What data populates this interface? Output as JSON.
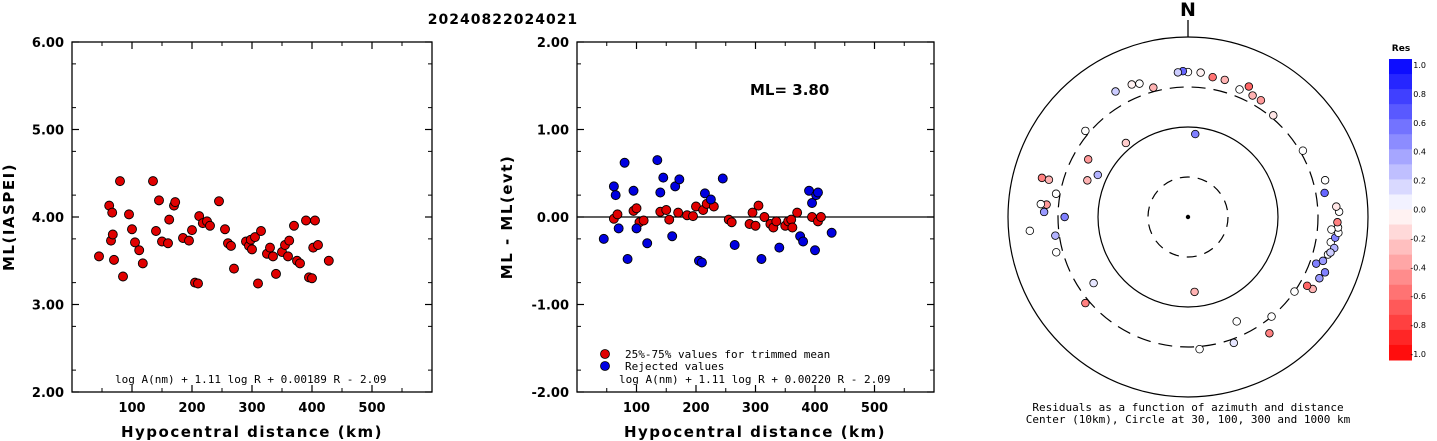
{
  "title": "20240822024021",
  "chart_data": [
    {
      "type": "scatter",
      "xlabel": "Hypocentral distance (km)",
      "ylabel": "ML(IASPEI)",
      "xlim": [
        0,
        600
      ],
      "ylim": [
        2.0,
        6.0
      ],
      "xticks": [
        "100",
        "200",
        "300",
        "400",
        "500"
      ],
      "yticks": [
        "2.00",
        "3.00",
        "4.00",
        "5.00",
        "6.00"
      ],
      "formula": "log A(nm) + 1.11 log R + 0.00189 R - 2.09",
      "color": "#e00000",
      "points": [
        [
          45,
          3.55
        ],
        [
          62,
          4.13
        ],
        [
          65,
          3.73
        ],
        [
          67,
          4.05
        ],
        [
          68,
          3.8
        ],
        [
          70,
          3.51
        ],
        [
          80,
          4.41
        ],
        [
          85,
          3.32
        ],
        [
          95,
          4.03
        ],
        [
          100,
          3.86
        ],
        [
          105,
          3.71
        ],
        [
          112,
          3.62
        ],
        [
          118,
          3.47
        ],
        [
          135,
          4.41
        ],
        [
          140,
          3.84
        ],
        [
          145,
          4.19
        ],
        [
          150,
          3.72
        ],
        [
          160,
          3.7
        ],
        [
          162,
          3.97
        ],
        [
          170,
          4.13
        ],
        [
          172,
          4.17
        ],
        [
          185,
          3.76
        ],
        [
          195,
          3.73
        ],
        [
          200,
          3.85
        ],
        [
          205,
          3.25
        ],
        [
          210,
          3.24
        ],
        [
          212,
          4.01
        ],
        [
          218,
          3.93
        ],
        [
          225,
          3.95
        ],
        [
          230,
          3.9
        ],
        [
          245,
          4.18
        ],
        [
          255,
          3.86
        ],
        [
          260,
          3.7
        ],
        [
          265,
          3.67
        ],
        [
          270,
          3.41
        ],
        [
          290,
          3.72
        ],
        [
          295,
          3.67
        ],
        [
          298,
          3.74
        ],
        [
          300,
          3.63
        ],
        [
          305,
          3.77
        ],
        [
          310,
          3.24
        ],
        [
          315,
          3.84
        ],
        [
          325,
          3.58
        ],
        [
          330,
          3.65
        ],
        [
          335,
          3.55
        ],
        [
          340,
          3.35
        ],
        [
          350,
          3.6
        ],
        [
          355,
          3.68
        ],
        [
          360,
          3.55
        ],
        [
          362,
          3.73
        ],
        [
          370,
          3.9
        ],
        [
          375,
          3.5
        ],
        [
          380,
          3.47
        ],
        [
          390,
          3.96
        ],
        [
          395,
          3.31
        ],
        [
          400,
          3.3
        ],
        [
          402,
          3.65
        ],
        [
          405,
          3.96
        ],
        [
          410,
          3.68
        ],
        [
          428,
          3.5
        ]
      ]
    },
    {
      "type": "scatter",
      "xlabel": "Hypocentral distance (km)",
      "ylabel": "ML - ML(evt)",
      "xlim": [
        0,
        600
      ],
      "ylim": [
        -2.0,
        2.0
      ],
      "xticks": [
        "100",
        "200",
        "300",
        "400",
        "500"
      ],
      "yticks": [
        "-2.00",
        "-1.00",
        "0.00",
        "1.00",
        "2.00"
      ],
      "annotation": "ML= 3.80",
      "formula": "log A(nm) + 1.11 log R + 0.00220 R - 2.09",
      "legend": [
        {
          "label": "25%-75% values for trimmed mean",
          "color": "#e00000"
        },
        {
          "label": "Rejected values",
          "color": "#0000e0"
        }
      ],
      "series": [
        {
          "name": "25%-75% values for trimmed mean",
          "color": "#e00000",
          "points": [
            [
              62,
              -0.02
            ],
            [
              68,
              0.03
            ],
            [
              95,
              0.07
            ],
            [
              100,
              0.1
            ],
            [
              105,
              -0.06
            ],
            [
              112,
              -0.04
            ],
            [
              140,
              0.06
            ],
            [
              150,
              0.08
            ],
            [
              155,
              -0.03
            ],
            [
              170,
              0.05
            ],
            [
              185,
              0.02
            ],
            [
              195,
              0.01
            ],
            [
              200,
              0.12
            ],
            [
              212,
              0.08
            ],
            [
              218,
              0.15
            ],
            [
              230,
              0.12
            ],
            [
              255,
              -0.03
            ],
            [
              260,
              -0.06
            ],
            [
              290,
              -0.08
            ],
            [
              295,
              0.05
            ],
            [
              300,
              -0.1
            ],
            [
              305,
              0.13
            ],
            [
              315,
              0.0
            ],
            [
              325,
              -0.08
            ],
            [
              330,
              -0.12
            ],
            [
              335,
              -0.05
            ],
            [
              350,
              -0.1
            ],
            [
              355,
              -0.05
            ],
            [
              360,
              -0.03
            ],
            [
              362,
              -0.12
            ],
            [
              370,
              0.05
            ],
            [
              395,
              0.0
            ],
            [
              405,
              -0.05
            ],
            [
              410,
              0.0
            ]
          ]
        },
        {
          "name": "Rejected values",
          "color": "#0000e0",
          "points": [
            [
              45,
              -0.25
            ],
            [
              62,
              0.35
            ],
            [
              65,
              0.25
            ],
            [
              70,
              -0.13
            ],
            [
              80,
              0.62
            ],
            [
              85,
              -0.48
            ],
            [
              95,
              0.3
            ],
            [
              100,
              -0.13
            ],
            [
              118,
              -0.3
            ],
            [
              135,
              0.65
            ],
            [
              140,
              0.28
            ],
            [
              145,
              0.45
            ],
            [
              160,
              -0.22
            ],
            [
              165,
              0.35
            ],
            [
              172,
              0.43
            ],
            [
              205,
              -0.5
            ],
            [
              210,
              -0.52
            ],
            [
              215,
              0.27
            ],
            [
              225,
              0.2
            ],
            [
              245,
              0.44
            ],
            [
              265,
              -0.32
            ],
            [
              310,
              -0.48
            ],
            [
              340,
              -0.35
            ],
            [
              375,
              -0.22
            ],
            [
              380,
              -0.28
            ],
            [
              390,
              0.3
            ],
            [
              395,
              0.16
            ],
            [
              400,
              -0.38
            ],
            [
              402,
              0.25
            ],
            [
              405,
              0.28
            ],
            [
              428,
              -0.18
            ]
          ]
        }
      ]
    },
    {
      "type": "polar",
      "north_label": "N",
      "caption": [
        "Residuals as a function of azimuth and distance",
        "Center (10km), Circle at 30, 100, 300 and 1000 km"
      ],
      "colorbar": {
        "title": "Res",
        "ticks": [
          "1.0",
          "0.8",
          "0.6",
          "0.4",
          "0.2",
          "0.0",
          "-0.2",
          "-0.4",
          "-0.6",
          "-0.8",
          "-1.0"
        ],
        "max_color": "#0000ff",
        "min_color": "#ff0000"
      },
      "points": [
        {
          "az": 10,
          "dist": 400,
          "res": -0.55
        },
        {
          "az": 15,
          "dist": 400,
          "res": -0.3
        },
        {
          "az": 25,
          "dist": 420,
          "res": -0.6
        },
        {
          "az": 22,
          "dist": 360,
          "res": 0.0
        },
        {
          "az": 28,
          "dist": 360,
          "res": -0.3
        },
        {
          "az": 32,
          "dist": 360,
          "res": -0.4
        },
        {
          "az": 40,
          "dist": 320,
          "res": -0.1
        },
        {
          "az": 5,
          "dist": 430,
          "res": -0.05
        },
        {
          "az": 0,
          "dist": 430,
          "res": 0.0
        },
        {
          "az": 358,
          "dist": 440,
          "res": 0.6
        },
        {
          "az": 356,
          "dist": 430,
          "res": 0.2
        },
        {
          "az": 340,
          "dist": 400,
          "res": 0.0
        },
        {
          "az": 337,
          "dist": 420,
          "res": -0.05
        },
        {
          "az": 345,
          "dist": 330,
          "res": -0.3
        },
        {
          "az": 330,
          "dist": 430,
          "res": 0.2
        },
        {
          "az": 5,
          "dist": 85,
          "res": 0.5
        },
        {
          "az": 300,
          "dist": 200,
          "res": -0.4
        },
        {
          "az": 295,
          "dist": 130,
          "res": 0.3
        },
        {
          "az": 290,
          "dist": 160,
          "res": -0.3
        },
        {
          "az": 285,
          "dist": 500,
          "res": -0.5
        },
        {
          "az": 280,
          "dist": 330,
          "res": 0.0
        },
        {
          "az": 275,
          "dist": 400,
          "res": -0.4
        },
        {
          "az": 270,
          "dist": 250,
          "res": 0.5
        },
        {
          "az": 265,
          "dist": 600,
          "res": 0.0
        },
        {
          "az": 262,
          "dist": 330,
          "res": 0.3
        },
        {
          "az": 255,
          "dist": 350,
          "res": 0.0
        },
        {
          "az": 230,
          "dist": 330,
          "res": -0.5
        },
        {
          "az": 235,
          "dist": 200,
          "res": 0.1
        },
        {
          "az": 140,
          "dist": 300,
          "res": 0.0
        },
        {
          "az": 145,
          "dist": 400,
          "res": -0.5
        },
        {
          "az": 155,
          "dist": 200,
          "res": 0.0
        },
        {
          "az": 160,
          "dist": 330,
          "res": 0.1
        },
        {
          "az": 175,
          "dist": 70,
          "res": -0.3
        },
        {
          "az": 175,
          "dist": 320,
          "res": 0.0
        },
        {
          "az": 125,
          "dist": 300,
          "res": 0.0
        },
        {
          "az": 115,
          "dist": 430,
          "res": 0.4
        },
        {
          "az": 110,
          "dist": 350,
          "res": 0.5
        },
        {
          "az": 108,
          "dist": 400,
          "res": 0.4
        },
        {
          "az": 105,
          "dist": 430,
          "res": 0.0
        },
        {
          "az": 100,
          "dist": 430,
          "res": 0.0
        },
        {
          "az": 102,
          "dist": 480,
          "res": 0.3
        },
        {
          "az": 98,
          "dist": 470,
          "res": 0.5
        },
        {
          "az": 96,
          "dist": 500,
          "res": 0.0
        },
        {
          "az": 94,
          "dist": 490,
          "res": 0.0
        },
        {
          "az": 92,
          "dist": 480,
          "res": -0.5
        },
        {
          "az": 88,
          "dist": 500,
          "res": 0.0
        },
        {
          "az": 86,
          "dist": 470,
          "res": -0.1
        },
        {
          "az": 80,
          "dist": 370,
          "res": 0.6
        },
        {
          "az": 75,
          "dist": 400,
          "res": 0.0
        },
        {
          "az": 60,
          "dist": 320,
          "res": 0.0
        },
        {
          "az": 112,
          "dist": 460,
          "res": 0.5
        },
        {
          "az": 104,
          "dist": 450,
          "res": 0.2
        },
        {
          "az": 95,
          "dist": 420,
          "res": 0.0
        },
        {
          "az": 120,
          "dist": 420,
          "res": -0.3
        },
        {
          "az": 120,
          "dist": 360,
          "res": -0.6
        },
        {
          "az": 320,
          "dist": 120,
          "res": -0.2
        },
        {
          "az": 310,
          "dist": 330,
          "res": 0.0
        },
        {
          "az": 285,
          "dist": 420,
          "res": -0.3
        },
        {
          "az": 275,
          "dist": 460,
          "res": 0.0
        },
        {
          "az": 272,
          "dist": 420,
          "res": 0.4
        }
      ]
    }
  ]
}
